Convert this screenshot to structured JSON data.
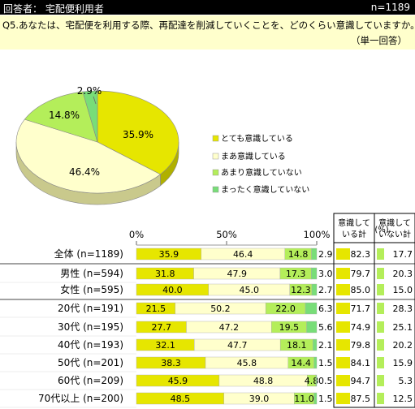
{
  "header": {
    "respondent_label": "回答者： 宅配便利用者",
    "n_label": "n=1189"
  },
  "question": {
    "text": "Q5.あなたは、宅配便を利用する際、再配達を削減していくことを、どのくらい意識していますか。",
    "answer_type": "（単一回答）"
  },
  "colors": {
    "very": "#e6e600",
    "somewhat": "#ffffcc",
    "notmuch": "#b4ee5a",
    "notatall": "#78dd78"
  },
  "chart_data": [
    {
      "type": "pie",
      "categories": [
        "とても意識している",
        "まあ意識している",
        "あまり意識していない",
        "まったく意識していない"
      ],
      "values": [
        35.9,
        46.4,
        14.8,
        2.9
      ],
      "value_labels": [
        "35.9%",
        "46.4%",
        "14.8%",
        "2.9%"
      ],
      "legend": "right"
    },
    {
      "type": "bar",
      "orientation": "horizontal-stacked-100",
      "x_ticks": [
        "0%",
        "50%",
        "100%"
      ],
      "categories": [
        "全体 (n=1189)",
        "男性 (n=594)",
        "女性 (n=595)",
        "20代 (n=191)",
        "30代 (n=195)",
        "40代 (n=193)",
        "50代 (n=201)",
        "60代 (n=209)",
        "70代以上 (n=200)"
      ],
      "series": [
        {
          "name": "とても意識している",
          "values": [
            35.9,
            31.8,
            40.0,
            21.5,
            27.7,
            32.1,
            38.3,
            45.9,
            48.5
          ],
          "labels": [
            "35.9",
            "31.8",
            "40.0",
            "21.5",
            "27.7",
            "32.1",
            "38.3",
            "45.9",
            "48.5"
          ]
        },
        {
          "name": "まあ意識している",
          "values": [
            46.4,
            47.9,
            45.0,
            50.2,
            47.2,
            47.7,
            45.8,
            48.8,
            39.0
          ],
          "labels": [
            "46.4",
            "47.9",
            "45.0",
            "50.2",
            "47.2",
            "47.7",
            "45.8",
            "48.8",
            "39.0"
          ]
        },
        {
          "name": "あまり意識していない",
          "values": [
            14.8,
            17.3,
            12.3,
            22.0,
            19.5,
            18.1,
            14.4,
            4.8,
            11.0
          ],
          "labels": [
            "14.8",
            "17.3",
            "12.3",
            "22.0",
            "19.5",
            "18.1",
            "14.4",
            "4.8",
            "11.0"
          ]
        },
        {
          "name": "まったく意識していない",
          "values": [
            2.9,
            3.0,
            2.7,
            6.3,
            5.6,
            2.1,
            1.5,
            0.5,
            1.5
          ],
          "labels": [
            "2.9",
            "3.0",
            "2.7",
            "6.3",
            "5.6",
            "2.1",
            "1.5",
            "0.5",
            "1.5"
          ]
        }
      ],
      "summary": {
        "unit": "(%)",
        "col1_header": [
          "意識して",
          "いる計"
        ],
        "col2_header": [
          "意識して",
          "いない計"
        ],
        "conscious": [
          82.3,
          79.7,
          85.0,
          71.7,
          74.9,
          79.8,
          84.1,
          94.7,
          87.5
        ],
        "conscious_labels": [
          "82.3",
          "79.7",
          "85.0",
          "71.7",
          "74.9",
          "79.8",
          "84.1",
          "94.7",
          "87.5"
        ],
        "not_conscious": [
          17.7,
          20.3,
          15.0,
          28.3,
          25.1,
          20.2,
          15.9,
          5.3,
          12.5
        ],
        "not_conscious_labels": [
          "17.7",
          "20.3",
          "15.0",
          "28.3",
          "25.1",
          "20.2",
          "15.9",
          "5.3",
          "12.5"
        ]
      }
    }
  ]
}
